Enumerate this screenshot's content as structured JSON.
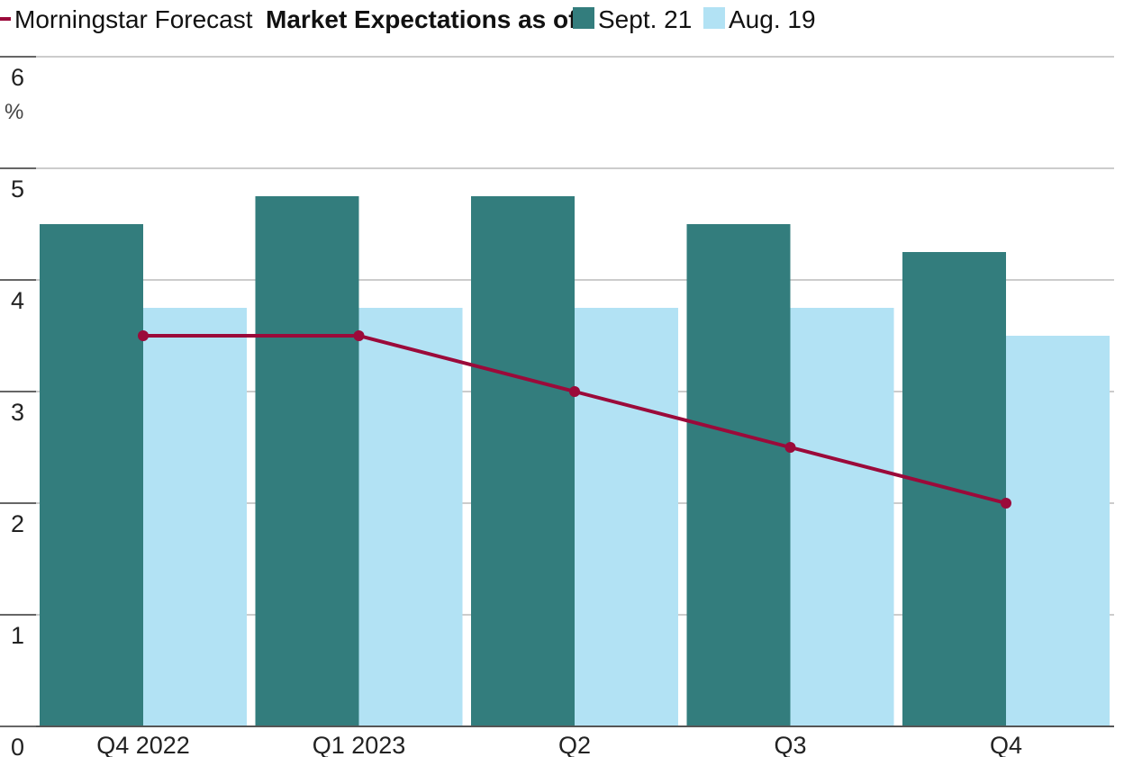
{
  "chart_data": {
    "type": "bar",
    "categories": [
      "Q4 2022",
      "Q1 2023",
      "Q2",
      "Q3",
      "Q4"
    ],
    "series": [
      {
        "name": "Sept. 21",
        "kind": "bar",
        "color": "#337d7d",
        "values": [
          4.5,
          4.75,
          4.75,
          4.5,
          4.25
        ]
      },
      {
        "name": "Aug. 19",
        "kind": "bar",
        "color": "#b2e2f4",
        "values": [
          3.75,
          3.75,
          3.75,
          3.75,
          3.5
        ]
      },
      {
        "name": "Morningstar Forecast",
        "kind": "line",
        "color": "#9b0a3a",
        "values": [
          3.5,
          3.5,
          3.0,
          2.5,
          2.0
        ]
      }
    ],
    "legend": {
      "line_label": "Morningstar Forecast",
      "group_title": "Market Expectations as of:",
      "placement": "top-left"
    },
    "yticks": [
      "0",
      "1",
      "2",
      "3",
      "4",
      "5",
      "6"
    ],
    "y_unit": "%",
    "ylim": [
      0,
      6
    ],
    "grid": true,
    "xlabel": "",
    "ylabel": ""
  }
}
